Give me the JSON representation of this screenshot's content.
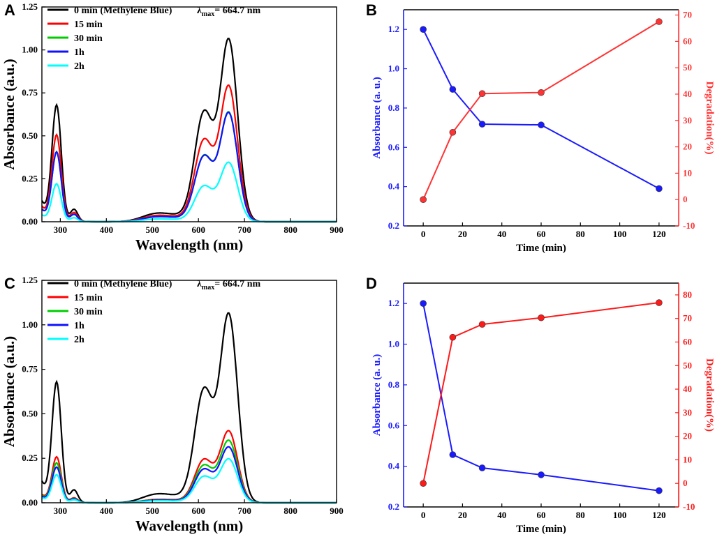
{
  "chart_data": [
    {
      "panel": "A",
      "type": "line",
      "xlabel": "Wavelength (nm)",
      "ylabel": "Absorbance (a.u.)",
      "xlim": [
        260,
        900
      ],
      "ylim": [
        0,
        1.25
      ],
      "xticks": [
        300,
        400,
        500,
        600,
        700,
        800,
        900
      ],
      "yticks": [
        0.0,
        0.25,
        0.5,
        0.75,
        1.0,
        1.25
      ],
      "ytick_labels": [
        "0.00",
        "0.25",
        "0.50",
        "0.75",
        "1.00",
        "1.25"
      ],
      "lambda_note": {
        "prefix": "λ",
        "sub": "max",
        "suffix": "= 664.7 nm"
      },
      "series": [
        {
          "name": "0 min (Methylene Blue)",
          "color": "#000000",
          "scale": 1.0
        },
        {
          "name": "15 min",
          "color": "#ff0000",
          "scale": 0.745
        },
        {
          "name": "30 min",
          "color": "#00cc00",
          "scale": 0.6
        },
        {
          "name": "1h",
          "color": "#1010ff",
          "scale": 0.597
        },
        {
          "name": "2h",
          "color": "#00ffff",
          "scale": 0.325
        }
      ],
      "peaks": {
        "uv_peak_nm": 292,
        "shoulder_nm": 612,
        "main_peak_nm": 664.7
      }
    },
    {
      "panel": "B",
      "type": "line",
      "xlabel": "Time (min)",
      "ylabel_left": "Absorbance (a. u.)",
      "ylabel_right": "Degradation(%)",
      "xlim": [
        -10,
        130
      ],
      "ylim_left": [
        0.2,
        1.3
      ],
      "ylim_right": [
        -10,
        72
      ],
      "xticks": [
        0,
        20,
        40,
        60,
        80,
        100,
        120
      ],
      "yticks_left": [
        0.2,
        0.4,
        0.6,
        0.8,
        1.0,
        1.2
      ],
      "ytick_labels_left": [
        "0.2",
        "0.4",
        "0.6",
        "0.8",
        "1.0",
        "1.2"
      ],
      "yticks_right": [
        -10,
        0,
        10,
        20,
        30,
        40,
        50,
        60,
        70
      ],
      "x": [
        0,
        15,
        30,
        60,
        120
      ],
      "series": [
        {
          "name": "Absorbance",
          "color": "#1a1aff",
          "axis": "left",
          "values": [
            1.2,
            0.895,
            0.718,
            0.714,
            0.39
          ]
        },
        {
          "name": "Degradation",
          "color": "#ff3333",
          "axis": "right",
          "values": [
            0,
            25.5,
            40.2,
            40.6,
            67.5
          ]
        }
      ]
    },
    {
      "panel": "C",
      "type": "line",
      "xlabel": "Wavelength (nm)",
      "ylabel": "Absorbance (a.u.)",
      "xlim": [
        260,
        900
      ],
      "ylim": [
        0,
        1.25
      ],
      "xticks": [
        300,
        400,
        500,
        600,
        700,
        800,
        900
      ],
      "yticks": [
        0.0,
        0.25,
        0.5,
        0.75,
        1.0,
        1.25
      ],
      "ytick_labels": [
        "0.00",
        "0.25",
        "0.50",
        "0.75",
        "1.00",
        "1.25"
      ],
      "lambda_note": {
        "prefix": "λ",
        "sub": "max",
        "suffix": "= 664.7 nm"
      },
      "series": [
        {
          "name": "0 min (Methylene Blue)",
          "color": "#000000",
          "scale": 1.0
        },
        {
          "name": "15 min",
          "color": "#ff0000",
          "scale": 0.38
        },
        {
          "name": "30 min",
          "color": "#00cc00",
          "scale": 0.33
        },
        {
          "name": "1h",
          "color": "#1010ff",
          "scale": 0.295
        },
        {
          "name": "2h",
          "color": "#00ffff",
          "scale": 0.232
        }
      ],
      "peaks": {
        "uv_peak_nm": 292,
        "shoulder_nm": 612,
        "main_peak_nm": 664.7
      }
    },
    {
      "panel": "D",
      "type": "line",
      "xlabel": "Time (min)",
      "ylabel_left": "Absorbance (a. u.)",
      "ylabel_right": "Degradation(%)",
      "xlim": [
        -10,
        130
      ],
      "ylim_left": [
        0.2,
        1.3
      ],
      "ylim_right": [
        -10,
        85
      ],
      "xticks": [
        0,
        20,
        40,
        60,
        80,
        100,
        120
      ],
      "yticks_left": [
        0.2,
        0.4,
        0.6,
        0.8,
        1.0,
        1.2
      ],
      "ytick_labels_left": [
        "0.2",
        "0.4",
        "0.6",
        "0.8",
        "1.0",
        "1.2"
      ],
      "yticks_right": [
        -10,
        0,
        10,
        20,
        30,
        40,
        50,
        60,
        70,
        80
      ],
      "x": [
        0,
        15,
        30,
        60,
        120
      ],
      "series": [
        {
          "name": "Absorbance",
          "color": "#1a1aff",
          "axis": "left",
          "values": [
            1.2,
            0.457,
            0.392,
            0.358,
            0.28
          ]
        },
        {
          "name": "Degradation",
          "color": "#ff1a1a",
          "axis": "right",
          "values": [
            0,
            62,
            67.5,
            70.3,
            76.7
          ]
        }
      ]
    }
  ]
}
